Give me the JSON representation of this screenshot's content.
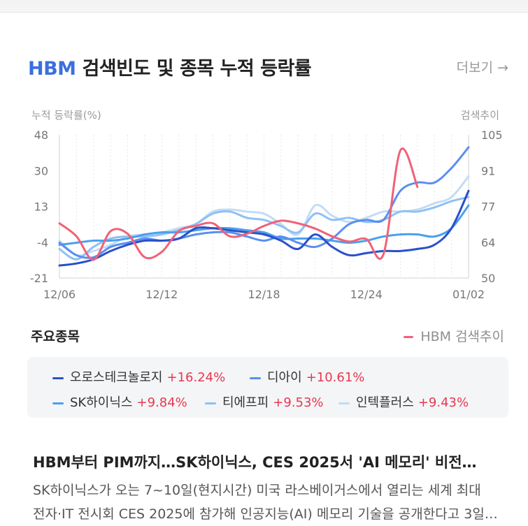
{
  "header": {
    "title_highlight": "HBM",
    "title_rest": "검색빈도 및 종목 누적 등락률",
    "more_label": "더보기 →"
  },
  "chart_data": {
    "type": "line",
    "ylabel_left": "누적 등락률(%)",
    "ylabel_right": "검색추이",
    "y_left_ticks": [
      "48",
      "30",
      "13",
      "-4",
      "-21"
    ],
    "y_left_range": [
      -21,
      48
    ],
    "y_right_ticks": [
      "105",
      "91",
      "77",
      "64",
      "50"
    ],
    "y_right_range": [
      50,
      105
    ],
    "x_tick_labels": [
      "12/06",
      "12/12",
      "12/18",
      "12/24",
      "01/02"
    ],
    "x_tick_index": [
      0,
      6,
      12,
      18,
      24
    ],
    "series": [
      {
        "name": "오로스테크놀로지",
        "axis": "left",
        "color": "#2a50c8",
        "values": [
          -15,
          -14,
          -12,
          -8,
          -5,
          -3,
          -3,
          -2,
          3,
          3,
          2,
          1,
          0,
          -3,
          -7,
          0,
          -6,
          -10,
          -9,
          -8,
          -8,
          -7,
          -5,
          3,
          21
        ]
      },
      {
        "name": "디아이",
        "axis": "left",
        "color": "#5b8ef0",
        "values": [
          -4,
          -10,
          -11,
          -6,
          -4,
          -2,
          -3,
          -2,
          0,
          1,
          1,
          -1,
          -3,
          -1,
          -4,
          -6,
          -2,
          5,
          7,
          7,
          21,
          25,
          25,
          32,
          42
        ]
      },
      {
        "name": "SK하이닉스",
        "axis": "left",
        "color": "#4aa0ee",
        "values": [
          -5,
          -4,
          -3,
          -3,
          -2,
          0,
          1,
          1,
          2,
          3,
          3,
          2,
          1,
          -2,
          -2,
          -2,
          -3,
          -4,
          -3,
          -1,
          0,
          0,
          -1,
          3,
          14
        ]
      },
      {
        "name": "티에프피",
        "axis": "left",
        "color": "#8fc0f4",
        "values": [
          -7,
          -12,
          -6,
          -2,
          -1,
          -1,
          0,
          2,
          5,
          10,
          11,
          8,
          7,
          4,
          1,
          10,
          7,
          8,
          6,
          7,
          11,
          11,
          13,
          16,
          18
        ]
      },
      {
        "name": "인텍플러스",
        "axis": "left",
        "color": "#c2dcf5",
        "values": [
          -3,
          -10,
          -8,
          -5,
          -1,
          0,
          1,
          3,
          5,
          11,
          12,
          11,
          10,
          5,
          0,
          14,
          9,
          6,
          8,
          11,
          11,
          12,
          15,
          18,
          28
        ]
      },
      {
        "name": "HBM 검색추이",
        "axis": "right",
        "color": "#f06277",
        "values": [
          71,
          66,
          57,
          68,
          67,
          58,
          60,
          68,
          70,
          71,
          66,
          67,
          70,
          72,
          71,
          69,
          66,
          64,
          65,
          59,
          99,
          85
        ]
      }
    ],
    "grid": "vertical-dotted",
    "legend": "below"
  },
  "section": {
    "label": "주요종목",
    "search_legend": "HBM 검색추이"
  },
  "stocks": [
    {
      "name": "오로스테크놀로지",
      "change": "+16.24%",
      "color": "#2a50c8"
    },
    {
      "name": "디아이",
      "change": "+10.61%",
      "color": "#5b8ef0"
    },
    {
      "name": "SK하이닉스",
      "change": "+9.84%",
      "color": "#4aa0ee"
    },
    {
      "name": "티에프피",
      "change": "+9.53%",
      "color": "#8fc0f4"
    },
    {
      "name": "인텍플러스",
      "change": "+9.43%",
      "color": "#c2dcf5"
    }
  ],
  "news": {
    "title": "HBM부터 PIM까지…SK하이닉스, CES 2025서 'AI 메모리' 비전…",
    "body_line1": "SK하이닉스가 오는 7~10일(현지시간) 미국 라스베이거스에서 열리는 세계 최대",
    "body_line2": "전자·IT 전시회 CES 2025에 참가해 인공지능(AI) 메모리 기술을 공개한다고 3일…"
  }
}
